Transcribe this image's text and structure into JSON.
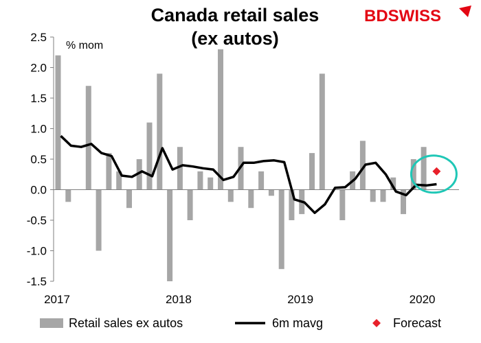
{
  "logo": {
    "part1": "BD",
    "part2": "SWISS",
    "color": "#e30613"
  },
  "chart_data": {
    "type": "bar",
    "title_lines": [
      "Canada retail sales",
      "(ex autos)"
    ],
    "ylabel": "% mom",
    "ylim": [
      -1.5,
      2.5
    ],
    "yticks": [
      "2.5",
      "2.0",
      "1.5",
      "1.0",
      "0.5",
      "0.0",
      "-0.5",
      "-1.0",
      "-1.5"
    ],
    "ytick_values": [
      2.5,
      2.0,
      1.5,
      1.0,
      0.5,
      0.0,
      -0.5,
      -1.0,
      -1.5
    ],
    "x_start": "2017-01",
    "xticks": [
      "2017",
      "2018",
      "2019",
      "2020"
    ],
    "grid": false,
    "legend_position": "bottom",
    "colors": {
      "bars": "#a6a6a6",
      "line": "#000000",
      "forecast": "#e8202a",
      "circle": "#1fc7b6"
    },
    "series": [
      {
        "name": "Retail sales ex autos",
        "kind": "bar",
        "values": [
          2.2,
          -0.2,
          0.0,
          1.7,
          -1.0,
          0.6,
          0.3,
          -0.3,
          0.5,
          1.1,
          1.9,
          -1.5,
          0.7,
          -0.5,
          0.3,
          0.2,
          2.3,
          -0.2,
          0.7,
          -0.3,
          0.3,
          -0.1,
          -1.3,
          -0.5,
          -0.4,
          0.6,
          1.9,
          0.0,
          -0.5,
          0.3,
          0.8,
          -0.2,
          -0.2,
          0.2,
          -0.4,
          0.5,
          0.7
        ]
      },
      {
        "name": "6m mavg",
        "kind": "line",
        "values": [
          0.88,
          0.72,
          0.7,
          0.75,
          0.6,
          0.55,
          0.23,
          0.21,
          0.3,
          0.22,
          0.68,
          0.33,
          0.4,
          0.38,
          0.35,
          0.33,
          0.16,
          0.21,
          0.44,
          0.44,
          0.47,
          0.48,
          0.45,
          -0.16,
          -0.21,
          -0.38,
          -0.24,
          0.03,
          0.04,
          0.18,
          0.41,
          0.44,
          0.25,
          -0.03,
          -0.09,
          0.08,
          0.07,
          0.09
        ]
      },
      {
        "name": "Forecast",
        "kind": "point",
        "points": [
          {
            "x": "2020-02",
            "y": 0.3
          }
        ]
      }
    ]
  }
}
